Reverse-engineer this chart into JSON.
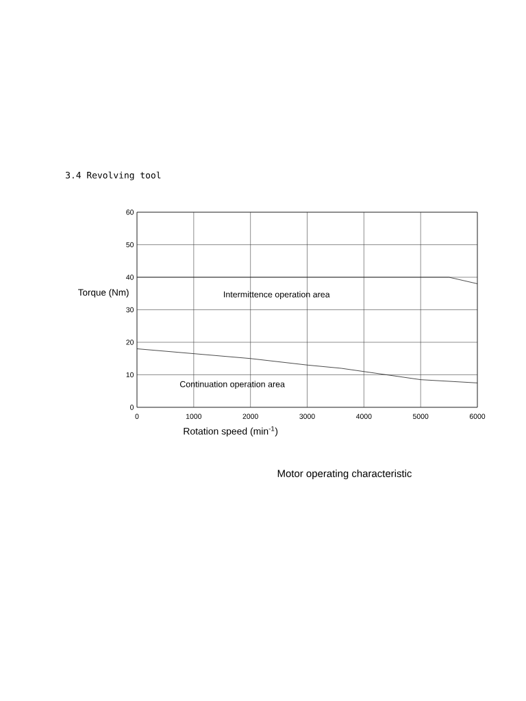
{
  "chart_data": {
    "type": "line",
    "title": "3.4 Revolving tool",
    "xlabel": "Rotation speed (min$^{-1}$)",
    "ylabel": "Torque (Nm)",
    "annotations": [
      "Intermittence operation area",
      "Continuation operation area",
      "Motor operating characteristic"
    ],
    "series": [
      {
        "color": "#1c1c1c",
        "x": [
          0,
          5500,
          6000
        ],
        "values": [
          40,
          40,
          38
        ]
      },
      {
        "color": "#1c1c1c",
        "x": [
          0,
          1000,
          2000,
          3000,
          3600,
          4000,
          5000,
          6000
        ],
        "values": [
          18,
          16.5,
          15,
          13,
          12,
          11,
          8.5,
          7.5
        ]
      }
    ],
    "xlim": [
      0,
      6000
    ],
    "ylim": [
      0,
      60
    ],
    "xticks": [
      0,
      1000,
      2000,
      3000,
      4000,
      5000,
      6000
    ],
    "yticks": [
      0,
      10,
      20,
      30,
      40,
      50,
      60
    ],
    "grid": true,
    "marker": "none",
    "line_style": "solid"
  }
}
